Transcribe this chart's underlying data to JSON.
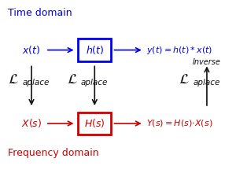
{
  "bg_color": "#ffffff",
  "blue": "#0000ee",
  "red": "#cc0000",
  "black": "#111111",
  "time_domain_label": "Time domain",
  "freq_domain_label": "Frequency domain",
  "xt_label": "$x(t)$",
  "ht_label": "$h(t)$",
  "yt_label": "$y(t) = h(t)*x(t)$",
  "Xs_label": "$X(s)$",
  "Hs_label": "$H(s)$",
  "Ys_label": "$Y(s) = H(s){\\cdot}X(s)$",
  "laplace_L": "$\\mathcal{L}$",
  "laplace_rest": "aplace",
  "inverse_label": "Inverse",
  "figsize": [
    3.0,
    2.25
  ],
  "dpi": 100
}
